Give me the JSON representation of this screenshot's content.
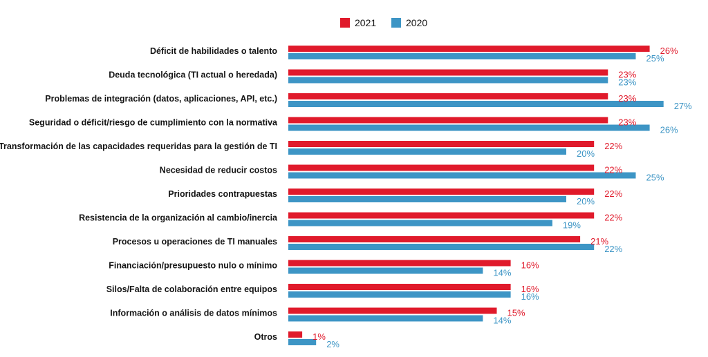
{
  "chart_data": {
    "type": "bar",
    "orientation": "horizontal",
    "title": "",
    "xlabel": "",
    "ylabel": "",
    "xlim": [
      0,
      30
    ],
    "grid": false,
    "legend_position": "top-center",
    "value_suffix": "%",
    "categories": [
      "Déficit de habilidades o talento",
      "Deuda tecnológica (TI actual o heredada)",
      "Problemas de integración (datos, aplicaciones, API, etc.)",
      "Seguridad o déficit/riesgo de cumplimiento con la normativa",
      "Transformación de las capacidades requeridas para la gestión de TI",
      "Necesidad de reducir costos",
      "Prioridades contrapuestas",
      "Resistencia de la organización al cambio/inercia",
      "Procesos u operaciones de TI manuales",
      "Financiación/presupuesto nulo o mínimo",
      "Silos/Falta de colaboración entre equipos",
      "Información o análisis de datos mínimos",
      "Otros"
    ],
    "series": [
      {
        "name": "2021",
        "color": "#e01a2b",
        "values": [
          26,
          23,
          23,
          23,
          22,
          22,
          22,
          22,
          21,
          16,
          16,
          15,
          1
        ]
      },
      {
        "name": "2020",
        "color": "#3d95c5",
        "values": [
          25,
          23,
          27,
          26,
          20,
          25,
          20,
          19,
          22,
          14,
          16,
          14,
          2
        ]
      }
    ]
  }
}
